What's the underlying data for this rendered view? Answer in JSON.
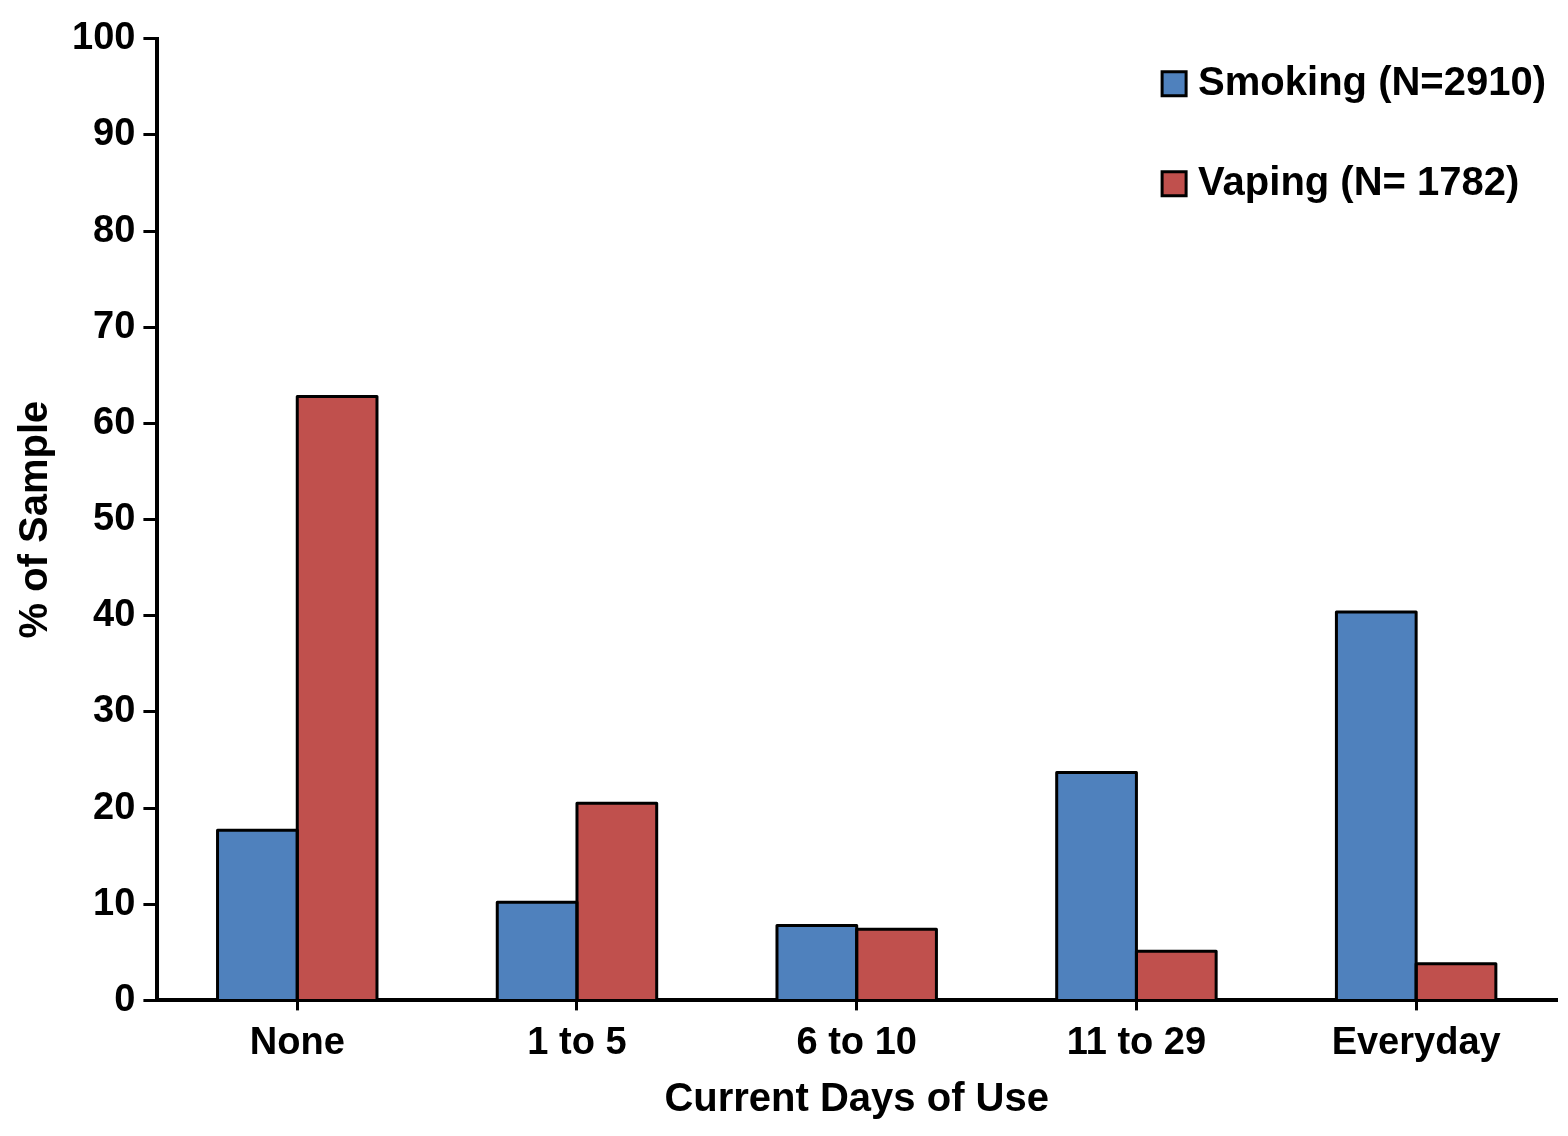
{
  "chart_data": {
    "type": "bar",
    "xlabel": "Current Days of Use",
    "ylabel": "% of Sample",
    "categories": [
      "None",
      "1 to 5",
      "6 to 10",
      "11 to 29",
      "Everyday"
    ],
    "series": [
      {
        "name": "Smoking (N=2910)",
        "color": "#4f81bd",
        "values": [
          17.7,
          10.2,
          7.8,
          23.7,
          40.4
        ]
      },
      {
        "name": "Vaping (N= 1782)",
        "color": "#c0504d",
        "values": [
          62.8,
          20.5,
          7.4,
          5.1,
          3.8
        ]
      }
    ],
    "ylim": [
      0,
      100
    ],
    "yticks": [
      0,
      10,
      20,
      30,
      40,
      50,
      60,
      70,
      80,
      90,
      100
    ],
    "grid": false,
    "legend": "top right"
  }
}
